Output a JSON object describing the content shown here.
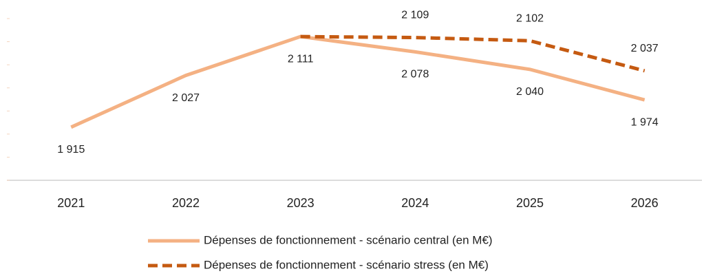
{
  "chart_data": {
    "type": "line",
    "categories": [
      "2021",
      "2022",
      "2023",
      "2024",
      "2025",
      "2026"
    ],
    "series": [
      {
        "name": "Dépenses de fonctionnement - scénario central (en M€)",
        "color": "#f4b183",
        "dash": false,
        "values": [
          1915,
          2027,
          2111,
          2078,
          2040,
          1974
        ],
        "value_labels": [
          "1 915",
          "2 027",
          "2 111",
          "2 078",
          "2 040",
          "1 974"
        ]
      },
      {
        "name": "Dépenses de fonctionnement -  scénario stress  (en M€)",
        "color": "#c55a11",
        "dash": true,
        "values": [
          null,
          null,
          2111,
          2109,
          2102,
          2037
        ],
        "value_labels": [
          null,
          null,
          null,
          "2 109",
          "2 102",
          "2 037"
        ]
      }
    ],
    "ylim": [
      1800,
      2150
    ],
    "yticks": [
      1800,
      1850,
      1900,
      1950,
      2000,
      2050,
      2100,
      2150
    ]
  }
}
